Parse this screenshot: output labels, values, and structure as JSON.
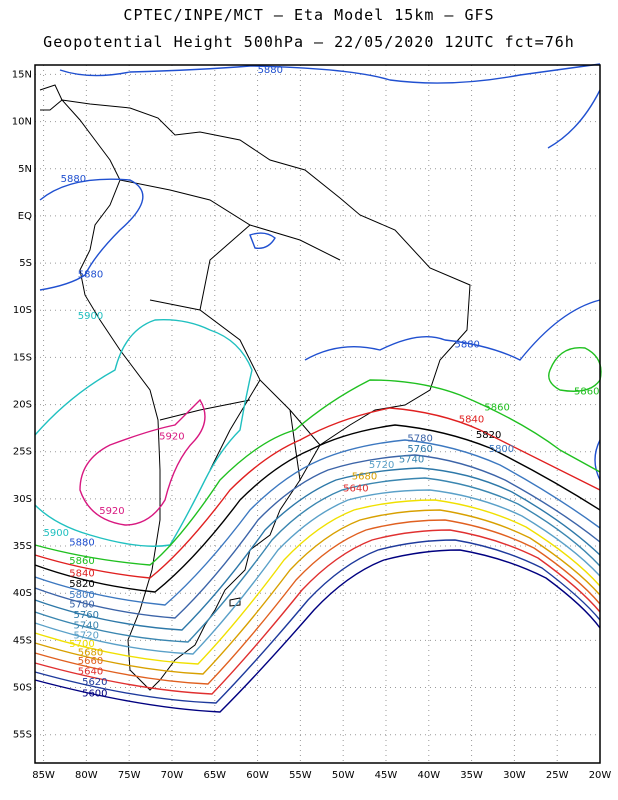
{
  "title_line1": "CPTEC/INPE/MCT –  Eta Model 15km – GFS",
  "title_line2": "Geopotential Height 500hPa – 22/05/2020 12UTC fct=76h",
  "axes": {
    "lat_ticks": [
      "15N",
      "10N",
      "5N",
      "EQ",
      "5S",
      "10S",
      "15S",
      "20S",
      "25S",
      "30S",
      "35S",
      "40S",
      "45S",
      "50S",
      "55S"
    ],
    "lon_ticks": [
      "85W",
      "80W",
      "75W",
      "70W",
      "65W",
      "60W",
      "55W",
      "50W",
      "45W",
      "40W",
      "35W",
      "30W",
      "25W",
      "20W"
    ]
  },
  "chart_data": {
    "type": "contour",
    "field": "geopotential height 500hPa",
    "lon_range": [
      -86,
      -20
    ],
    "lat_range": [
      16,
      -58
    ],
    "grid": true,
    "contour_levels": [
      5600,
      5620,
      5640,
      5660,
      5680,
      5700,
      5720,
      5740,
      5760,
      5780,
      5800,
      5820,
      5840,
      5860,
      5880,
      5900,
      5920
    ],
    "level_colors": {
      "5600": "#000080",
      "5620": "#1e3a9c",
      "5640": "#e03030",
      "5660": "#e06020",
      "5680": "#d8a000",
      "5700": "#f0e000",
      "5720": "#5aa0c8",
      "5740": "#3a86b0",
      "5760": "#2d78a8",
      "5780": "#3c64a8",
      "5800": "#3c78c0",
      "5820": "#000000",
      "5840": "#e02020",
      "5860": "#20c020",
      "5880": "#2050d0",
      "5900": "#20c0c0",
      "5920": "#d81880"
    },
    "labels": [
      {
        "text": "5880",
        "color": "#2050d0",
        "lon": -60,
        "lat": 15.6
      },
      {
        "text": "5880",
        "color": "#2050d0",
        "lon": -83,
        "lat": 4
      },
      {
        "text": "5880",
        "color": "#2050d0",
        "lon": -81,
        "lat": -6.1
      },
      {
        "text": "5880",
        "color": "#2050d0",
        "lon": -37,
        "lat": -13.5
      },
      {
        "text": "5880",
        "color": "#2050d0",
        "lon": -82,
        "lat": -34.5
      },
      {
        "text": "5860",
        "color": "#20c020",
        "lon": -22,
        "lat": -18.5
      },
      {
        "text": "5860",
        "color": "#20c020",
        "lon": -33.5,
        "lat": -20.2
      },
      {
        "text": "5860",
        "color": "#20c020",
        "lon": -82,
        "lat": -36.5
      },
      {
        "text": "5840",
        "color": "#e02020",
        "lon": -36.5,
        "lat": -21.5
      },
      {
        "text": "5840",
        "color": "#e02020",
        "lon": -82,
        "lat": -37.8
      },
      {
        "text": "5820",
        "color": "#000000",
        "lon": -34.5,
        "lat": -23.1
      },
      {
        "text": "5820",
        "color": "#000000",
        "lon": -82,
        "lat": -38.9
      },
      {
        "text": "5800",
        "color": "#3c78c0",
        "lon": -33,
        "lat": -24.6
      },
      {
        "text": "5800",
        "color": "#3c78c0",
        "lon": -82,
        "lat": -40.1
      },
      {
        "text": "5780",
        "color": "#3c64a8",
        "lon": -42.5,
        "lat": -23.5
      },
      {
        "text": "5780",
        "color": "#3c64a8",
        "lon": -82,
        "lat": -41.1
      },
      {
        "text": "5760",
        "color": "#2d78a8",
        "lon": -42.5,
        "lat": -24.6
      },
      {
        "text": "5760",
        "color": "#2d78a8",
        "lon": -81.5,
        "lat": -42.2
      },
      {
        "text": "5740",
        "color": "#3a86b0",
        "lon": -43.5,
        "lat": -25.7
      },
      {
        "text": "5740",
        "color": "#3a86b0",
        "lon": -81.5,
        "lat": -43.3
      },
      {
        "text": "5720",
        "color": "#5aa0c8",
        "lon": -47,
        "lat": -26.3
      },
      {
        "text": "5720",
        "color": "#5aa0c8",
        "lon": -81.5,
        "lat": -44.4
      },
      {
        "text": "5700",
        "color": "#f0e000",
        "lon": -82,
        "lat": -45.3
      },
      {
        "text": "5680",
        "color": "#d8a000",
        "lon": -49,
        "lat": -27.5
      },
      {
        "text": "5680",
        "color": "#d8a000",
        "lon": -81,
        "lat": -46.2
      },
      {
        "text": "5660",
        "color": "#e06020",
        "lon": -81,
        "lat": -47.1
      },
      {
        "text": "5640",
        "color": "#e03030",
        "lon": -50,
        "lat": -28.8
      },
      {
        "text": "5640",
        "color": "#e03030",
        "lon": -81,
        "lat": -48.2
      },
      {
        "text": "5620",
        "color": "#1e3a9c",
        "lon": -80.5,
        "lat": -49.3
      },
      {
        "text": "5600",
        "color": "#000080",
        "lon": -80.5,
        "lat": -50.5
      },
      {
        "text": "5900",
        "color": "#20c0c0",
        "lon": -81,
        "lat": -10.5
      },
      {
        "text": "5900",
        "color": "#20c0c0",
        "lon": -85,
        "lat": -33.5
      },
      {
        "text": "5920",
        "color": "#d81880",
        "lon": -71.5,
        "lat": -23.3
      },
      {
        "text": "5920",
        "color": "#d81880",
        "lon": -78.5,
        "lat": -31.2
      }
    ]
  }
}
